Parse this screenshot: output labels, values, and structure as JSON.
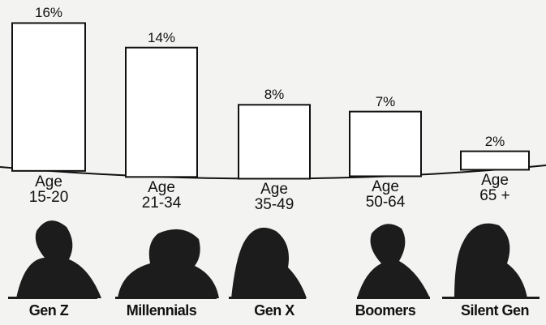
{
  "chart_data": {
    "type": "bar",
    "categories": [
      "Age\n15-20",
      "Age\n21-34",
      "Age\n35-49",
      "Age\n50-64",
      "Age\n65 +"
    ],
    "values": [
      16,
      14,
      8,
      7,
      2
    ],
    "value_labels": [
      "16%",
      "14%",
      "8%",
      "7%",
      "2%"
    ],
    "generations": [
      "Gen Z",
      "Millennials",
      "Gen X",
      "Boomers",
      "Silent Gen"
    ],
    "color": "#ffffff"
  }
}
